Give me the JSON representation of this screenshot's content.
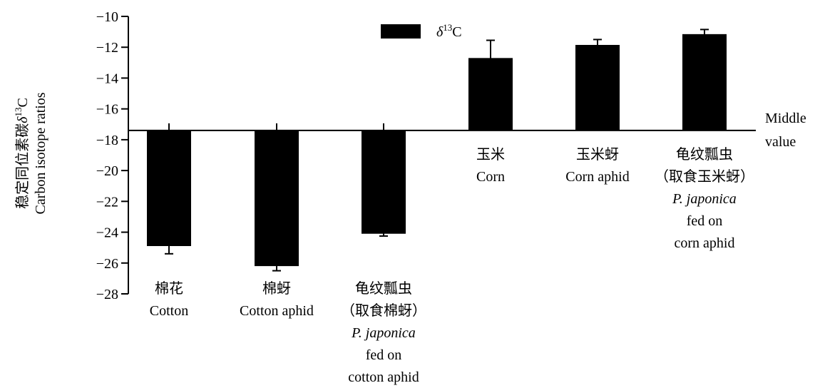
{
  "chart_data": {
    "type": "bar",
    "ylabel_zh": "稳定同位素碳δ13C",
    "ylabel_en": "Carbon isotope ratios",
    "ylim": [
      -28,
      -10
    ],
    "yticks": [
      -10,
      -12,
      -14,
      -16,
      -18,
      -20,
      -22,
      -24,
      -26,
      -28
    ],
    "baseline": -17.4,
    "baseline_label": [
      "Middle",
      "value"
    ],
    "legend": {
      "label": "δ13C",
      "placement": "top-center"
    },
    "categories": [
      {
        "zh": [
          "棉花"
        ],
        "en": [
          "Cotton"
        ],
        "italic": [],
        "extra": []
      },
      {
        "zh": [
          "棉蚜"
        ],
        "en": [
          "Cotton aphid"
        ],
        "italic": [],
        "extra": []
      },
      {
        "zh": [
          "龟纹瓢虫",
          "（取食棉蚜）"
        ],
        "en": [],
        "italic": [
          "P. japonica"
        ],
        "extra": [
          "fed on",
          "cotton aphid"
        ]
      },
      {
        "zh": [
          "玉米"
        ],
        "en": [
          "Corn"
        ],
        "italic": [],
        "extra": []
      },
      {
        "zh": [
          "玉米蚜"
        ],
        "en": [
          "Corn aphid"
        ],
        "italic": [],
        "extra": []
      },
      {
        "zh": [
          "龟纹瓢虫",
          "（取食玉米蚜）"
        ],
        "en": [],
        "italic": [
          "P. japonica"
        ],
        "extra": [
          "fed on",
          "corn aphid"
        ]
      }
    ],
    "series": [
      {
        "values": [
          -24.9,
          -26.2,
          -24.1,
          -12.7,
          -11.85,
          -11.15
        ],
        "errors": [
          0.5,
          0.3,
          0.15,
          1.15,
          0.35,
          0.3
        ]
      }
    ],
    "bar_color": "#000000"
  }
}
